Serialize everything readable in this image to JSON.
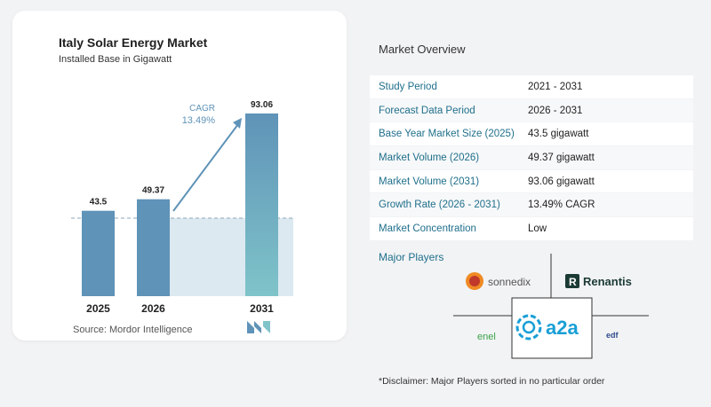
{
  "chart_data": {
    "type": "bar",
    "title": "Italy Solar Energy Market",
    "subtitle": "Installed Base in Gigawatt",
    "categories": [
      "2025",
      "2026",
      "2031"
    ],
    "values": [
      43.5,
      49.37,
      93.06
    ],
    "value_labels": [
      "43.5",
      "49.37",
      "93.06"
    ],
    "cagr_label": "CAGR",
    "cagr_value": "13.49%",
    "bar_color": "#5f93b8",
    "highlight_color": "#7fc4c9",
    "ylim": [
      0,
      100
    ]
  },
  "source": "Source:  Mordor Intelligence",
  "overview": {
    "title": "Market Overview",
    "rows": [
      {
        "label": "Study Period",
        "value": "2021 - 2031"
      },
      {
        "label": "Forecast Data Period",
        "value": "2026 - 2031"
      },
      {
        "label": "Base Year Market Size (2025)",
        "value": "43.5 gigawatt"
      },
      {
        "label": "Market Volume (2026)",
        "value": "49.37 gigawatt"
      },
      {
        "label": "Market Volume (2031)",
        "value": "93.06 gigawatt"
      },
      {
        "label": "Growth Rate (2026 - 2031)",
        "value": "13.49% CAGR"
      },
      {
        "label": "Market Concentration",
        "value": "Low"
      }
    ]
  },
  "players": {
    "title": "Major Players",
    "logos": [
      "sonnedix",
      "Renantis",
      "a2a",
      "enel",
      "edf"
    ]
  },
  "disclaimer": "*Disclaimer: Major Players sorted in no particular order"
}
